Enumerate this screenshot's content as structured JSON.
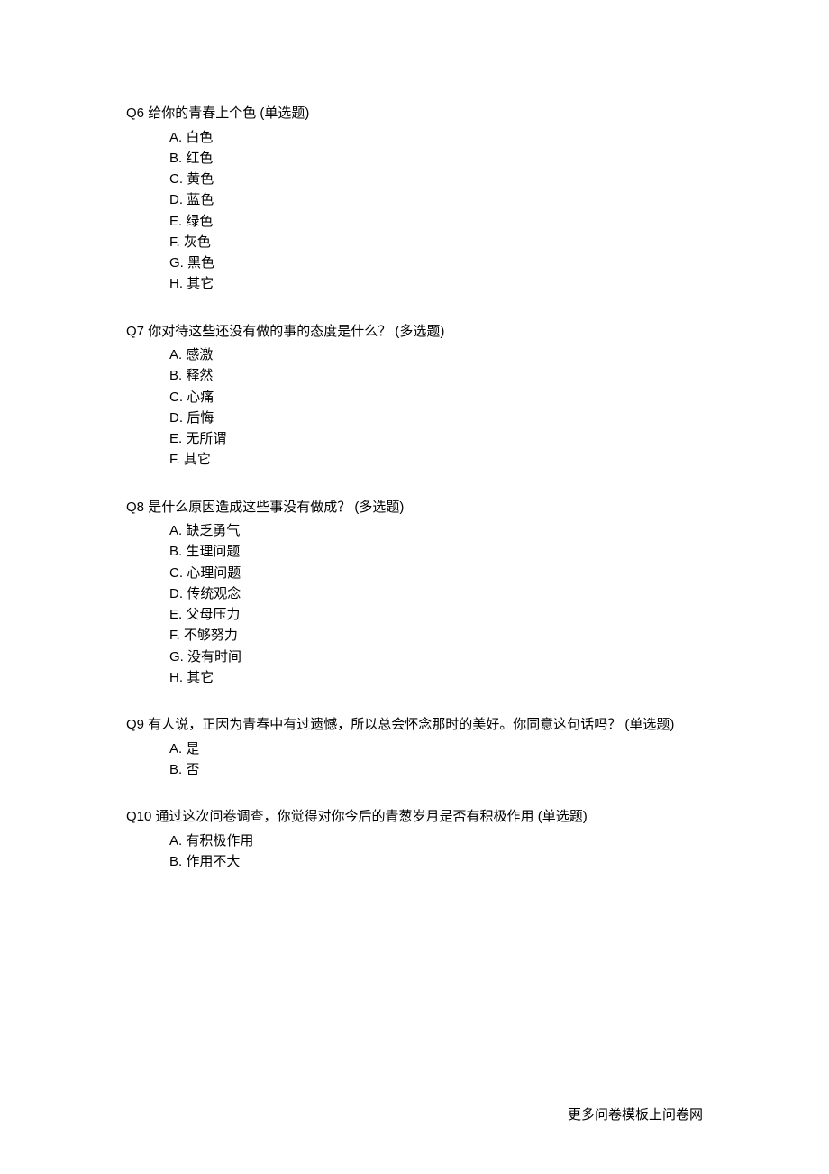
{
  "questions": [
    {
      "number": "Q6",
      "title": "给你的青春上个色 (单选题)",
      "options": [
        {
          "letter": "A",
          "text": "白色"
        },
        {
          "letter": "B",
          "text": "红色"
        },
        {
          "letter": "C",
          "text": "黄色"
        },
        {
          "letter": "D",
          "text": "蓝色"
        },
        {
          "letter": "E",
          "text": "绿色"
        },
        {
          "letter": "F",
          "text": "灰色"
        },
        {
          "letter": "G",
          "text": "黑色"
        },
        {
          "letter": "H",
          "text": "其它"
        }
      ]
    },
    {
      "number": "Q7",
      "title": "你对待这些还没有做的事的态度是什么？  (多选题)",
      "options": [
        {
          "letter": "A",
          "text": "感激"
        },
        {
          "letter": "B",
          "text": "释然"
        },
        {
          "letter": "C",
          "text": "心痛"
        },
        {
          "letter": "D",
          "text": "后悔"
        },
        {
          "letter": "E",
          "text": "无所谓"
        },
        {
          "letter": "F",
          "text": "其它"
        }
      ]
    },
    {
      "number": "Q8",
      "title": "是什么原因造成这些事没有做成？  (多选题)",
      "options": [
        {
          "letter": "A",
          "text": "缺乏勇气"
        },
        {
          "letter": "B",
          "text": "生理问题"
        },
        {
          "letter": "C",
          "text": "心理问题"
        },
        {
          "letter": "D",
          "text": "传统观念"
        },
        {
          "letter": "E",
          "text": "父母压力"
        },
        {
          "letter": "F",
          "text": "不够努力"
        },
        {
          "letter": "G",
          "text": "没有时间"
        },
        {
          "letter": "H",
          "text": "其它"
        }
      ]
    },
    {
      "number": "Q9",
      "title": "有人说，正因为青春中有过遗憾，所以总会怀念那时的美好。你同意这句话吗？  (单选题)",
      "options": [
        {
          "letter": "A",
          "text": "是"
        },
        {
          "letter": "B",
          "text": "否"
        }
      ]
    },
    {
      "number": "Q10",
      "title": "通过这次问卷调查，你觉得对你今后的青葱岁月是否有积极作用 (单选题)",
      "options": [
        {
          "letter": "A",
          "text": "有积极作用"
        },
        {
          "letter": "B",
          "text": "作用不大"
        }
      ]
    }
  ],
  "footer": "更多问卷模板上问卷网"
}
